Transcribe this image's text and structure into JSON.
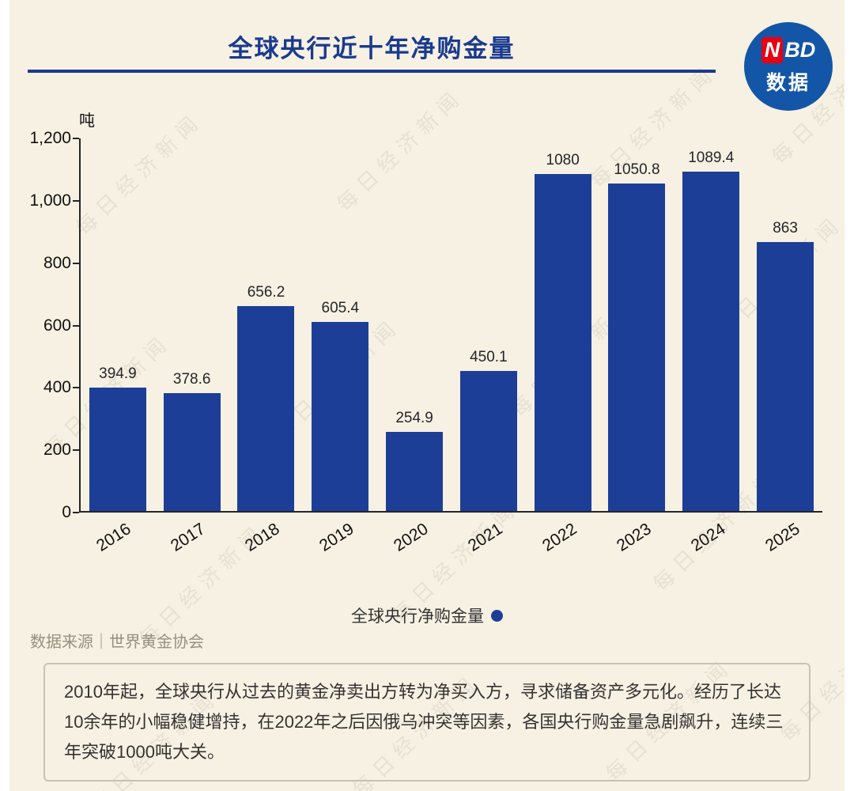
{
  "header": {
    "title": "全球央行近十年净购金量",
    "logo": {
      "n": "N",
      "bd": "BD",
      "sub": "数据"
    }
  },
  "chart_data": {
    "type": "bar",
    "title": "全球央行近十年净购金量",
    "unit": "吨",
    "categories": [
      "2016",
      "2017",
      "2018",
      "2019",
      "2020",
      "2021",
      "2022",
      "2023",
      "2024",
      "2025"
    ],
    "values": [
      394.9,
      378.6,
      656.2,
      605.4,
      254.9,
      450.1,
      1080,
      1050.8,
      1089.4,
      863
    ],
    "value_labels": [
      "394.9",
      "378.6",
      "656.2",
      "605.4",
      "254.9",
      "450.1",
      "1080",
      "1050.8",
      "1089.4",
      "863"
    ],
    "ylim": [
      0,
      1200
    ],
    "ytick_labels": [
      "1,200",
      "1,000",
      "800",
      "600",
      "400",
      "200",
      "0"
    ],
    "grid": false,
    "legend": "全球央行净购金量",
    "legend_position": "bottom"
  },
  "source": "数据来源｜世界黄金协会",
  "note": "2010年起，全球央行从过去的黄金净卖出方转为净买入方，寻求储备资产多元化。经历了长达10余年的小幅稳健增持，在2022年之后因俄乌冲突等因素，各国央行购金量急剧飙升，连续三年突破1000吨大关。",
  "watermark": "每日经济新闻",
  "colors": {
    "accent": "#1a3a8f",
    "bar": "#1d3e97",
    "background": "#f6f1e2",
    "logo_blue": "#1356a8",
    "logo_red": "#e60012",
    "source_gray": "#94917f"
  }
}
